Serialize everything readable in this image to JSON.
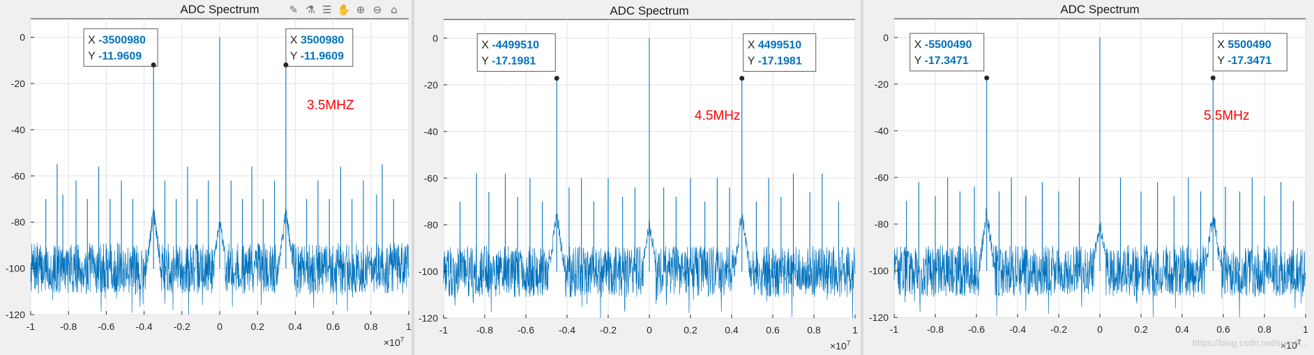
{
  "toolbar": {
    "icons": [
      "brush-icon",
      "legend-icon",
      "datatip-icon",
      "pan-icon",
      "zoom-in-icon",
      "zoom-out-icon",
      "home-icon"
    ],
    "glyphs": [
      "✎",
      "⚗",
      "☰",
      "✋",
      "⊕",
      "⊖",
      "⌂"
    ]
  },
  "watermark": "https://blog.csdn.net/summ...",
  "colors": {
    "line": "#0072bd",
    "annotation": "#ff0000",
    "datatip_value": "#0072bd"
  },
  "chart_data": [
    {
      "type": "line",
      "title": "ADC Spectrum",
      "xlim": [
        -1,
        1
      ],
      "ylim": [
        -120,
        8
      ],
      "x_ticks": [
        -1,
        -0.8,
        -0.6,
        -0.4,
        -0.2,
        0,
        0.2,
        0.4,
        0.6,
        0.8,
        1
      ],
      "x_tick_labels": [
        "-1",
        "-0.8",
        "-0.6",
        "-0.4",
        "-0.2",
        "0",
        "0.2",
        "0.4",
        "0.6",
        "0.8",
        "1"
      ],
      "y_ticks": [
        0,
        -20,
        -40,
        -60,
        -80,
        -100,
        -120
      ],
      "y_tick_labels": [
        "0",
        "-20",
        "-40",
        "-60",
        "-80",
        "-100",
        "-120"
      ],
      "x_exponent": "×10^7",
      "x_exponent_base": "×10",
      "x_exponent_power": "7",
      "grid": true,
      "noise_floor": -100,
      "series": [
        {
          "peaks": [
            {
              "x": 0,
              "y": 0
            },
            {
              "x": -0.35,
              "y": -11.96
            },
            {
              "x": 0.35,
              "y": -11.96
            },
            {
              "x": -0.86,
              "y": -55
            },
            {
              "x": 0.86,
              "y": -55
            },
            {
              "x": -0.83,
              "y": -68
            },
            {
              "x": 0.83,
              "y": -68
            },
            {
              "x": -0.76,
              "y": -62
            },
            {
              "x": 0.76,
              "y": -62
            },
            {
              "x": -0.7,
              "y": -70
            },
            {
              "x": 0.7,
              "y": -70
            },
            {
              "x": -0.64,
              "y": -56
            },
            {
              "x": 0.64,
              "y": -56
            },
            {
              "x": -0.58,
              "y": -70
            },
            {
              "x": 0.58,
              "y": -70
            },
            {
              "x": -0.52,
              "y": -62
            },
            {
              "x": 0.52,
              "y": -62
            },
            {
              "x": -0.46,
              "y": -70
            },
            {
              "x": 0.46,
              "y": -70
            },
            {
              "x": -0.29,
              "y": -62
            },
            {
              "x": 0.29,
              "y": -62
            },
            {
              "x": -0.23,
              "y": -70
            },
            {
              "x": 0.23,
              "y": -70
            },
            {
              "x": -0.17,
              "y": -56
            },
            {
              "x": 0.17,
              "y": -56
            },
            {
              "x": -0.12,
              "y": -70
            },
            {
              "x": 0.12,
              "y": -70
            },
            {
              "x": -0.06,
              "y": -62
            },
            {
              "x": 0.06,
              "y": -62
            },
            {
              "x": -0.92,
              "y": -70
            },
            {
              "x": 0.92,
              "y": -70
            }
          ]
        }
      ],
      "datatips": [
        {
          "x": -3500980,
          "y": -11.9609,
          "x_label": "X",
          "y_label": "Y",
          "x_text": "-3500980",
          "y_text": "-11.9609"
        },
        {
          "x": 3500980,
          "y": -11.9609,
          "x_label": "X",
          "y_label": "Y",
          "x_text": "3500980",
          "y_text": "-11.9609"
        }
      ],
      "annotation": "3.5MHZ"
    },
    {
      "type": "line",
      "title": "ADC Spectrum",
      "xlim": [
        -1,
        1
      ],
      "ylim": [
        -120,
        8
      ],
      "x_ticks": [
        -1,
        -0.8,
        -0.6,
        -0.4,
        -0.2,
        0,
        0.2,
        0.4,
        0.6,
        0.8,
        1
      ],
      "x_tick_labels": [
        "-1",
        "-0.8",
        "-0.6",
        "-0.4",
        "-0.2",
        "0",
        "0.2",
        "0.4",
        "0.6",
        "0.8",
        "1"
      ],
      "y_ticks": [
        0,
        -20,
        -40,
        -60,
        -80,
        -100,
        -120
      ],
      "y_tick_labels": [
        "0",
        "-20",
        "-40",
        "-60",
        "-80",
        "-100",
        "-120"
      ],
      "x_exponent": "×10^7",
      "x_exponent_base": "×10",
      "x_exponent_power": "7",
      "grid": true,
      "noise_floor": -100,
      "series": [
        {
          "peaks": [
            {
              "x": 0,
              "y": 0
            },
            {
              "x": -0.45,
              "y": -17.2
            },
            {
              "x": 0.45,
              "y": -17.2
            },
            {
              "x": -0.84,
              "y": -58
            },
            {
              "x": 0.84,
              "y": -58
            },
            {
              "x": -0.78,
              "y": -66
            },
            {
              "x": 0.78,
              "y": -66
            },
            {
              "x": -0.7,
              "y": -58
            },
            {
              "x": 0.7,
              "y": -58
            },
            {
              "x": -0.64,
              "y": -68
            },
            {
              "x": 0.64,
              "y": -68
            },
            {
              "x": -0.58,
              "y": -60
            },
            {
              "x": 0.58,
              "y": -60
            },
            {
              "x": -0.52,
              "y": -70
            },
            {
              "x": 0.52,
              "y": -70
            },
            {
              "x": -0.39,
              "y": -64
            },
            {
              "x": 0.39,
              "y": -64
            },
            {
              "x": -0.33,
              "y": -60
            },
            {
              "x": 0.33,
              "y": -60
            },
            {
              "x": -0.27,
              "y": -70
            },
            {
              "x": 0.27,
              "y": -70
            },
            {
              "x": -0.2,
              "y": -60
            },
            {
              "x": 0.2,
              "y": -60
            },
            {
              "x": -0.13,
              "y": -68
            },
            {
              "x": 0.13,
              "y": -68
            },
            {
              "x": -0.07,
              "y": -64
            },
            {
              "x": 0.07,
              "y": -64
            },
            {
              "x": -0.92,
              "y": -70
            },
            {
              "x": 0.92,
              "y": -70
            }
          ]
        }
      ],
      "datatips": [
        {
          "x": -4499510,
          "y": -17.1981,
          "x_label": "X",
          "y_label": "Y",
          "x_text": "-4499510",
          "y_text": "-17.1981"
        },
        {
          "x": 4499510,
          "y": -17.1981,
          "x_label": "X",
          "y_label": "Y",
          "x_text": "4499510",
          "y_text": "-17.1981"
        }
      ],
      "annotation": "4.5MHz"
    },
    {
      "type": "line",
      "title": "ADC Spectrum",
      "xlim": [
        -1,
        1
      ],
      "ylim": [
        -120,
        8
      ],
      "x_ticks": [
        -1,
        -0.8,
        -0.6,
        -0.4,
        -0.2,
        0,
        0.2,
        0.4,
        0.6,
        0.8,
        1
      ],
      "x_tick_labels": [
        "-1",
        "-0.8",
        "-0.6",
        "-0.4",
        "-0.2",
        "0",
        "0.2",
        "0.4",
        "0.6",
        "0.8",
        "1"
      ],
      "y_ticks": [
        0,
        -20,
        -40,
        -60,
        -80,
        -100,
        -120
      ],
      "y_tick_labels": [
        "0",
        "-20",
        "-40",
        "-60",
        "-80",
        "-100",
        "-120"
      ],
      "x_exponent": "×10^7",
      "x_exponent_base": "×10",
      "x_exponent_power": "7",
      "grid": true,
      "noise_floor": -100,
      "series": [
        {
          "peaks": [
            {
              "x": 0,
              "y": 0
            },
            {
              "x": -0.55,
              "y": -17.35
            },
            {
              "x": 0.55,
              "y": -17.35
            },
            {
              "x": -0.88,
              "y": -62
            },
            {
              "x": 0.88,
              "y": -62
            },
            {
              "x": -0.8,
              "y": -68
            },
            {
              "x": 0.8,
              "y": -68
            },
            {
              "x": -0.74,
              "y": -60
            },
            {
              "x": 0.74,
              "y": -60
            },
            {
              "x": -0.68,
              "y": -66
            },
            {
              "x": 0.68,
              "y": -66
            },
            {
              "x": -0.61,
              "y": -64
            },
            {
              "x": 0.61,
              "y": -64
            },
            {
              "x": -0.49,
              "y": -66
            },
            {
              "x": 0.49,
              "y": -66
            },
            {
              "x": -0.43,
              "y": -60
            },
            {
              "x": 0.43,
              "y": -60
            },
            {
              "x": -0.36,
              "y": -68
            },
            {
              "x": 0.36,
              "y": -68
            },
            {
              "x": -0.28,
              "y": -62
            },
            {
              "x": 0.28,
              "y": -62
            },
            {
              "x": -0.2,
              "y": -66
            },
            {
              "x": 0.2,
              "y": -66
            },
            {
              "x": -0.1,
              "y": -60
            },
            {
              "x": 0.1,
              "y": -60
            },
            {
              "x": -0.94,
              "y": -70
            },
            {
              "x": 0.94,
              "y": -70
            }
          ]
        }
      ],
      "datatips": [
        {
          "x": -5500490,
          "y": -17.3471,
          "x_label": "X",
          "y_label": "Y",
          "x_text": "-5500490",
          "y_text": "-17.3471"
        },
        {
          "x": 5500490,
          "y": -17.3471,
          "x_label": "X",
          "y_label": "Y",
          "x_text": "5500490",
          "y_text": "-17.3471"
        }
      ],
      "annotation": "5.5MHz"
    }
  ]
}
